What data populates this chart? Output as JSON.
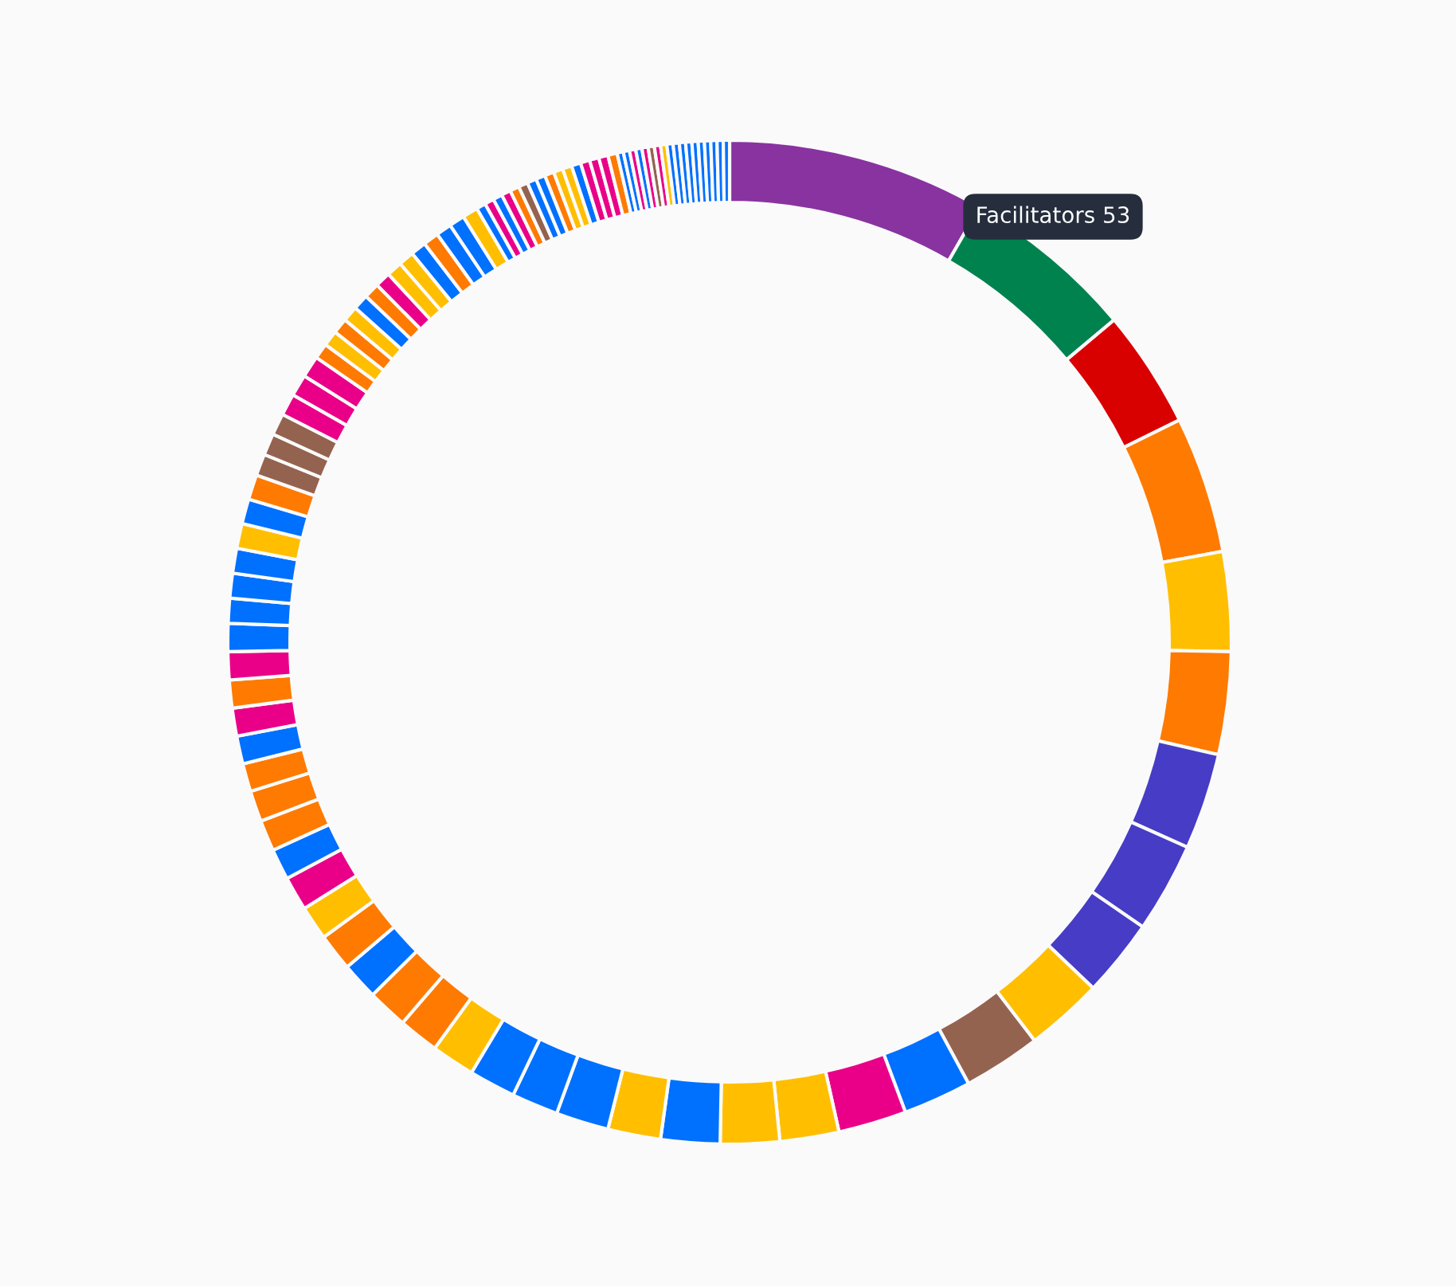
{
  "chart_data": {
    "type": "donut",
    "categories": [
      null,
      null,
      null,
      null,
      null,
      null,
      null,
      null,
      null,
      null,
      null,
      null,
      null,
      null,
      null,
      null,
      null,
      null,
      null,
      null,
      null,
      null,
      null,
      null,
      null,
      null,
      null,
      null,
      null,
      null,
      null,
      null,
      null,
      null,
      null,
      null,
      null,
      null,
      null,
      null,
      null,
      null,
      null,
      null,
      null,
      null,
      null,
      null,
      null,
      null,
      null,
      null,
      null,
      null,
      null,
      null,
      null,
      null,
      null,
      null,
      null,
      null,
      null,
      null,
      null,
      null,
      null,
      null,
      null,
      null,
      null,
      null,
      null,
      null,
      null,
      null,
      null,
      null,
      null,
      null,
      null,
      null,
      null,
      null,
      null,
      null,
      null,
      null,
      null,
      null,
      null,
      null,
      null,
      null,
      null,
      null
    ],
    "values": [
      8.3,
      5.6,
      3.8,
      4.4,
      3.2,
      3.3,
      3.1,
      2.9,
      2.5,
      2.5,
      2.5,
      2.2,
      2.2,
      1.9,
      1.9,
      1.9,
      1.7,
      1.7,
      1.5,
      1.5,
      1.4,
      1.3,
      1.3,
      1.2,
      1.2,
      1.1,
      1.1,
      1.0,
      1.0,
      1.0,
      0.9,
      0.9,
      0.9,
      0.9,
      0.9,
      0.9,
      0.8,
      0.8,
      0.8,
      0.8,
      0.8,
      0.8,
      0.7,
      0.7,
      0.7,
      0.7,
      0.7,
      0.7,
      0.5,
      0.5,
      0.5,
      0.5,
      0.5,
      0.5,
      0.5,
      0.5,
      0.5,
      0.5,
      0.5,
      0.5,
      0.5,
      0.5,
      0.3,
      0.3,
      0.3,
      0.3,
      0.3,
      0.3,
      0.3,
      0.3,
      0.3,
      0.3,
      0.3,
      0.3,
      0.3,
      0.3,
      0.3,
      0.3,
      0.2,
      0.2,
      0.2,
      0.2,
      0.2,
      0.2,
      0.2,
      0.2,
      0.2,
      0.2,
      0.2,
      0.2,
      0.2,
      0.2,
      0.2,
      0.2,
      0.2,
      0.2
    ],
    "colors": [
      "#8833a0",
      "#00824f",
      "#d90000",
      "#ff7a00",
      "#ffbf00",
      "#ff7a00",
      "#473cc6",
      "#473cc6",
      "#473cc6",
      "#ffbf00",
      "#946350",
      "#0070ff",
      "#ea0088",
      "#ffbf00",
      "#ffbf00",
      "#0070ff",
      "#ffbf00",
      "#0070ff",
      "#0070ff",
      "#0070ff",
      "#ffbf00",
      "#ff7a00",
      "#ff7a00",
      "#0070ff",
      "#ff7a00",
      "#ffbf00",
      "#ea0088",
      "#0070ff",
      "#ff7a00",
      "#ff7a00",
      "#ff7a00",
      "#0070ff",
      "#ea0088",
      "#ff7a00",
      "#ea0088",
      "#0070ff",
      "#0070ff",
      "#0070ff",
      "#0070ff",
      "#ffbf00",
      "#0070ff",
      "#ff7a00",
      "#946350",
      "#946350",
      "#946350",
      "#ea0088",
      "#ea0088",
      "#ea0088",
      "#ff7a00",
      "#ffbf00",
      "#ff7a00",
      "#ffbf00",
      "#0070ff",
      "#ff7a00",
      "#ea0088",
      "#ffbf00",
      "#ffbf00",
      "#0070ff",
      "#ff7a00",
      "#0070ff",
      "#0070ff",
      "#ffbf00",
      "#0070ff",
      "#ea0088",
      "#0070ff",
      "#ea0088",
      "#ff7a00",
      "#946350",
      "#0070ff",
      "#0070ff",
      "#ff7a00",
      "#ffbf00",
      "#ffbf00",
      "#0070ff",
      "#ea0088",
      "#ea0088",
      "#ea0088",
      "#ff7a00",
      "#0070ff",
      "#0070ff",
      "#ea0088",
      "#0070ff",
      "#ea0088",
      "#946350",
      "#ea0088",
      "#ffbf00",
      "#0070ff",
      "#0070ff",
      "#0070ff",
      "#0070ff",
      "#0070ff",
      "#0070ff",
      "#0070ff",
      "#0070ff",
      "#0070ff",
      "#0070ff"
    ],
    "annotations": [
      "Facilitators 53"
    ]
  }
}
